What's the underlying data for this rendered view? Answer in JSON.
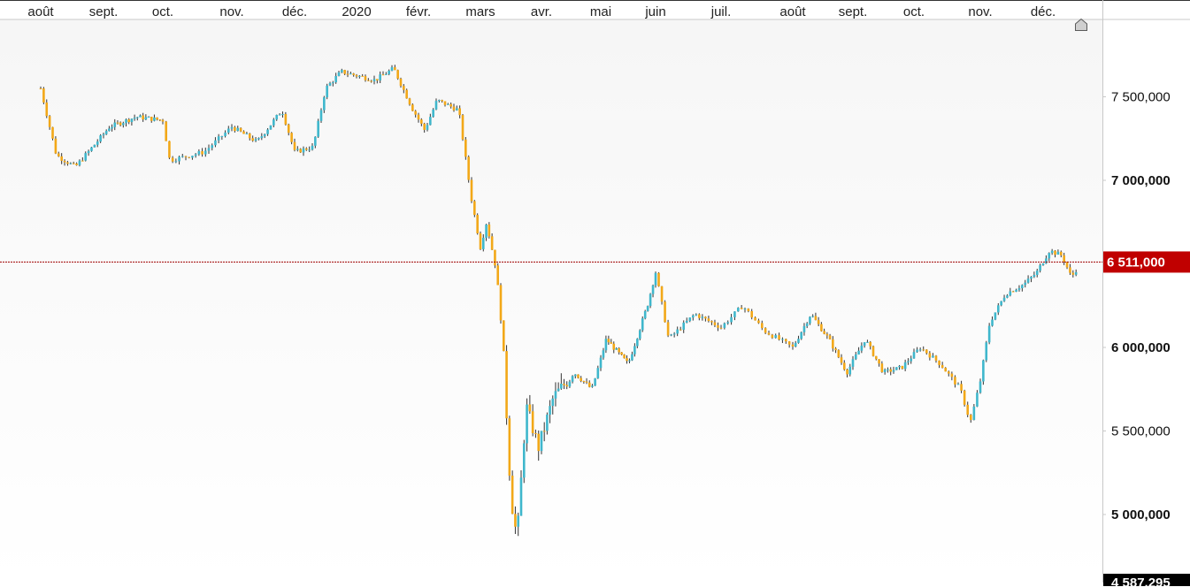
{
  "chart_data": {
    "type": "candlestick",
    "x_axis": {
      "ticks": [
        "août",
        "sept.",
        "oct.",
        "nov.",
        "déc.",
        "2020",
        "févr.",
        "mars",
        "avr.",
        "mai",
        "juin",
        "juil.",
        "août",
        "sept.",
        "oct.",
        "nov.",
        "déc."
      ],
      "position": "top"
    },
    "y_axis": {
      "ticks": [
        {
          "value": 7500000,
          "label": "7 500,000",
          "bold": false
        },
        {
          "value": 7000000,
          "label": "7 000,000",
          "bold": true
        },
        {
          "value": 6000000,
          "label": "6 000,000",
          "bold": true
        },
        {
          "value": 5500000,
          "label": "5 500,000",
          "bold": false
        },
        {
          "value": 5000000,
          "label": "5 000,000",
          "bold": true
        }
      ],
      "ylim": [
        4587295,
        7952000
      ],
      "position": "right"
    },
    "current_value": {
      "value": 6511000,
      "label": "6 511,000",
      "color": "#c00000"
    },
    "min_value": {
      "value": 4587295,
      "label": "4 587,295"
    },
    "colors": {
      "up": "#3fb7cc",
      "down": "#f2a818",
      "wick": "#333333"
    },
    "anchors": [
      {
        "tick": 0.0,
        "close": 7550000
      },
      {
        "tick": 0.25,
        "close": 7150000
      },
      {
        "tick": 0.55,
        "close": 7080000
      },
      {
        "tick": 1.1,
        "close": 7320000
      },
      {
        "tick": 1.55,
        "close": 7380000
      },
      {
        "tick": 2.0,
        "close": 7360000
      },
      {
        "tick": 2.1,
        "close": 7120000
      },
      {
        "tick": 2.6,
        "close": 7170000
      },
      {
        "tick": 3.0,
        "close": 7320000
      },
      {
        "tick": 3.4,
        "close": 7230000
      },
      {
        "tick": 3.8,
        "close": 7420000
      },
      {
        "tick": 4.0,
        "close": 7170000
      },
      {
        "tick": 4.3,
        "close": 7200000
      },
      {
        "tick": 4.5,
        "close": 7550000
      },
      {
        "tick": 4.75,
        "close": 7650000
      },
      {
        "tick": 5.3,
        "close": 7600000
      },
      {
        "tick": 5.6,
        "close": 7670000
      },
      {
        "tick": 5.9,
        "close": 7430000
      },
      {
        "tick": 6.1,
        "close": 7300000
      },
      {
        "tick": 6.3,
        "close": 7480000
      },
      {
        "tick": 6.65,
        "close": 7420000
      },
      {
        "tick": 6.85,
        "close": 6900000
      },
      {
        "tick": 7.0,
        "close": 6600000
      },
      {
        "tick": 7.1,
        "close": 6750000
      },
      {
        "tick": 7.25,
        "close": 6480000
      },
      {
        "tick": 7.35,
        "close": 6150000
      },
      {
        "tick": 7.5,
        "close": 5100000
      },
      {
        "tick": 7.6,
        "close": 4850000
      },
      {
        "tick": 7.75,
        "close": 5650000
      },
      {
        "tick": 7.95,
        "close": 5400000
      },
      {
        "tick": 8.2,
        "close": 5700000
      },
      {
        "tick": 8.55,
        "close": 5850000
      },
      {
        "tick": 8.85,
        "close": 5750000
      },
      {
        "tick": 9.1,
        "close": 6050000
      },
      {
        "tick": 9.5,
        "close": 5900000
      },
      {
        "tick": 9.85,
        "close": 6250000
      },
      {
        "tick": 10.0,
        "close": 6450000
      },
      {
        "tick": 10.2,
        "close": 6050000
      },
      {
        "tick": 10.6,
        "close": 6200000
      },
      {
        "tick": 11.0,
        "close": 6120000
      },
      {
        "tick": 11.3,
        "close": 6250000
      },
      {
        "tick": 11.6,
        "close": 6100000
      },
      {
        "tick": 12.0,
        "close": 6000000
      },
      {
        "tick": 12.3,
        "close": 6200000
      },
      {
        "tick": 12.6,
        "close": 6050000
      },
      {
        "tick": 12.9,
        "close": 5850000
      },
      {
        "tick": 13.2,
        "close": 6050000
      },
      {
        "tick": 13.5,
        "close": 5850000
      },
      {
        "tick": 13.8,
        "close": 5880000
      },
      {
        "tick": 14.1,
        "close": 6000000
      },
      {
        "tick": 14.4,
        "close": 5900000
      },
      {
        "tick": 14.7,
        "close": 5750000
      },
      {
        "tick": 14.85,
        "close": 5550000
      },
      {
        "tick": 15.0,
        "close": 5800000
      },
      {
        "tick": 15.15,
        "close": 6150000
      },
      {
        "tick": 15.4,
        "close": 6320000
      },
      {
        "tick": 15.7,
        "close": 6380000
      },
      {
        "tick": 15.9,
        "close": 6450000
      },
      {
        "tick": 16.1,
        "close": 6580000
      },
      {
        "tick": 16.3,
        "close": 6550000
      },
      {
        "tick": 16.45,
        "close": 6420000
      },
      {
        "tick": 16.6,
        "close": 6511000
      }
    ]
  }
}
